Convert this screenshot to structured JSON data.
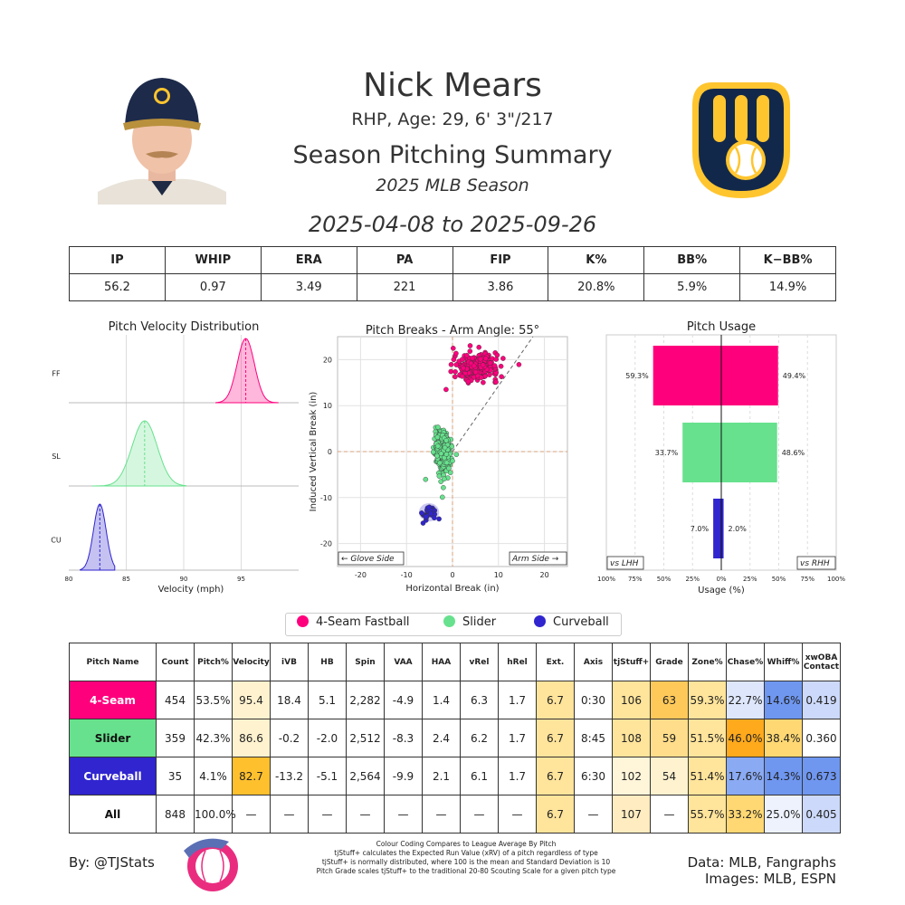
{
  "header": {
    "name": "Nick Mears",
    "subtitle": "RHP, Age: 29, 6' 3\"/217",
    "title": "Season Pitching Summary",
    "season": "2025 MLB Season",
    "dates": "2025-04-08 to 2025-09-26"
  },
  "summary": {
    "headers": [
      "IP",
      "WHIP",
      "ERA",
      "PA",
      "FIP",
      "K%",
      "BB%",
      "K−BB%"
    ],
    "values": [
      "56.2",
      "0.97",
      "3.49",
      "221",
      "3.86",
      "20.8%",
      "5.9%",
      "14.9%"
    ]
  },
  "colors": {
    "fastball": "#ff007d",
    "slider": "#67e18d",
    "curveball": "#3025ce",
    "brewers_navy": "#12284b",
    "brewers_gold": "#ffc52f"
  },
  "chart_data": [
    {
      "type": "area",
      "title": "Pitch Velocity Distribution",
      "xlabel": "Velocity (mph)",
      "xlim": [
        80,
        100
      ],
      "xticks": [
        "80",
        "85",
        "90",
        "95"
      ],
      "series": [
        {
          "name": "FF",
          "mean": 95.4,
          "lo": 92.8,
          "hi": 98.2,
          "sd": 0.75,
          "color": "#ff007d"
        },
        {
          "name": "SL",
          "mean": 86.6,
          "lo": 82.0,
          "hi": 90.2,
          "sd": 1.1,
          "color": "#67e18d"
        },
        {
          "name": "CU",
          "mean": 82.7,
          "lo": 81.0,
          "hi": 84.0,
          "sd": 0.55,
          "color": "#3025ce"
        }
      ]
    },
    {
      "type": "scatter",
      "title": "Pitch Breaks - Arm Angle: 55°",
      "xlabel": "Horizontal Break (in)",
      "ylabel": "Induced Vertical Break (in)",
      "xlim": [
        -25,
        25
      ],
      "ylim": [
        -25,
        25
      ],
      "xticks": [
        "-20",
        "-10",
        "0",
        "10",
        "20"
      ],
      "yticks": [
        "20",
        "10",
        "0",
        "-10",
        "-20"
      ],
      "arm_angle_deg": 55,
      "annotations": {
        "left": "← Glove Side",
        "right": "Arm Side →"
      },
      "series": [
        {
          "name": "4-Seam Fastball",
          "mean_x": 5.1,
          "mean_y": 18.4,
          "sd_x": 2.4,
          "sd_y": 1.4,
          "count": 454,
          "color": "#ff007d"
        },
        {
          "name": "Slider",
          "mean_x": -2.0,
          "mean_y": -0.2,
          "sd_x": 0.9,
          "sd_y": 2.4,
          "count": 359,
          "color": "#67e18d"
        },
        {
          "name": "Curveball",
          "mean_x": -5.1,
          "mean_y": -13.2,
          "sd_x": 1.0,
          "sd_y": 0.9,
          "count": 35,
          "color": "#3025ce"
        }
      ]
    },
    {
      "type": "bar",
      "title": "Pitch Usage",
      "xlabel": "Usage (%)",
      "xticks": [
        "100%",
        "75%",
        "50%",
        "25%",
        "0%",
        "25%",
        "50%",
        "75%",
        "100%"
      ],
      "corner_labels": {
        "left": "vs LHH",
        "right": "vs RHH"
      },
      "categories": [
        "4-Seam Fastball",
        "Slider",
        "Curveball"
      ],
      "series": [
        {
          "name": "vs LHH",
          "values": [
            59.3,
            33.7,
            7.0
          ],
          "labels": [
            "59.3%",
            "33.7%",
            "7.0%"
          ]
        },
        {
          "name": "vs RHH",
          "values": [
            49.4,
            48.6,
            2.0
          ],
          "labels": [
            "49.4%",
            "48.6%",
            "2.0%"
          ]
        }
      ]
    }
  ],
  "legend": [
    {
      "label": "4-Seam Fastball",
      "color": "#ff007d"
    },
    {
      "label": "Slider",
      "color": "#67e18d"
    },
    {
      "label": "Curveball",
      "color": "#3025ce"
    }
  ],
  "pitch_table": {
    "headers": [
      "Pitch Name",
      "Count",
      "Pitch%",
      "Velocity",
      "iVB",
      "HB",
      "Spin",
      "VAA",
      "HAA",
      "vRel",
      "hRel",
      "Ext.",
      "Axis",
      "tjStuff+",
      "Grade",
      "Zone%",
      "Chase%",
      "Whiff%",
      "xwOBA Contact"
    ],
    "rows": [
      {
        "name": "4-Seam",
        "name_bg": "#ff007d",
        "name_fg": "#ffffff",
        "cells": [
          "454",
          "53.5%",
          "95.4",
          "18.4",
          "5.1",
          "2,282",
          "-4.9",
          "1.4",
          "6.3",
          "1.7",
          "6.7",
          "0:30",
          "106",
          "63",
          "59.3%",
          "22.7%",
          "14.6%",
          "0.419"
        ],
        "bgs": [
          "#fff",
          "#fff",
          "#fff2cf",
          "#fff",
          "#fff",
          "#fff",
          "#fff",
          "#fff",
          "#fff",
          "#fff",
          "#ffe49b",
          "#fff",
          "#ffe49b",
          "#ffc95a",
          "#ffe49b",
          "#dde6fb",
          "#6f97f0",
          "#ccd9fa"
        ]
      },
      {
        "name": "Slider",
        "name_bg": "#67e18d",
        "name_fg": "#111111",
        "cells": [
          "359",
          "42.3%",
          "86.6",
          "-0.2",
          "-2.0",
          "2,512",
          "-8.3",
          "2.4",
          "6.2",
          "1.7",
          "6.7",
          "8:45",
          "108",
          "59",
          "51.5%",
          "46.0%",
          "38.4%",
          "0.360"
        ],
        "bgs": [
          "#fff",
          "#fff",
          "#fff2cf",
          "#fff",
          "#fff",
          "#fff",
          "#fff",
          "#fff",
          "#fff",
          "#fff",
          "#ffe49b",
          "#fff",
          "#ffe49b",
          "#ffdd8a",
          "#ffe49b",
          "#ffa91c",
          "#ffd873",
          "#fff"
        ]
      },
      {
        "name": "Curveball",
        "name_bg": "#3025ce",
        "name_fg": "#ffffff",
        "cells": [
          "35",
          "4.1%",
          "82.7",
          "-13.2",
          "-5.1",
          "2,564",
          "-9.9",
          "2.1",
          "6.1",
          "1.7",
          "6.7",
          "6:30",
          "102",
          "54",
          "51.4%",
          "17.6%",
          "14.3%",
          "0.673"
        ],
        "bgs": [
          "#fff",
          "#fff",
          "#ffc02e",
          "#fff",
          "#fff",
          "#fff",
          "#fff",
          "#fff",
          "#fff",
          "#fff",
          "#ffe49b",
          "#fff",
          "#fff5d9",
          "#fff2cf",
          "#ffe49b",
          "#8aaaf3",
          "#6f97f0",
          "#6f97f0"
        ]
      },
      {
        "name": "All",
        "name_bg": "#ffffff",
        "name_fg": "#111111",
        "cells": [
          "848",
          "100.0%",
          "—",
          "—",
          "—",
          "—",
          "—",
          "—",
          "—",
          "—",
          "6.7",
          "—",
          "107",
          "—",
          "55.7%",
          "33.2%",
          "25.0%",
          "0.405"
        ],
        "bgs": [
          "#fff",
          "#fff",
          "#fff",
          "#fff",
          "#fff",
          "#fff",
          "#fff",
          "#fff",
          "#fff",
          "#fff",
          "#ffe49b",
          "#fff",
          "#ffecc0",
          "#fff",
          "#ffe49b",
          "#ffd873",
          "#eef2fc",
          "#ccd9fa"
        ]
      }
    ]
  },
  "footer": {
    "credit": "By: @TJStats",
    "notes": [
      "Colour Coding Compares to League Average By Pitch",
      "tjStuff+ calculates the Expected Run Value (xRV) of a pitch regardless of type",
      "tjStuff+ is normally distributed, where 100 is the mean and Standard Deviation is 10",
      "Pitch Grade scales tjStuff+ to the traditional 20-80 Scouting Scale for a given pitch type"
    ],
    "data_source": "Data: MLB, Fangraphs",
    "images_source": "Images: MLB, ESPN"
  }
}
